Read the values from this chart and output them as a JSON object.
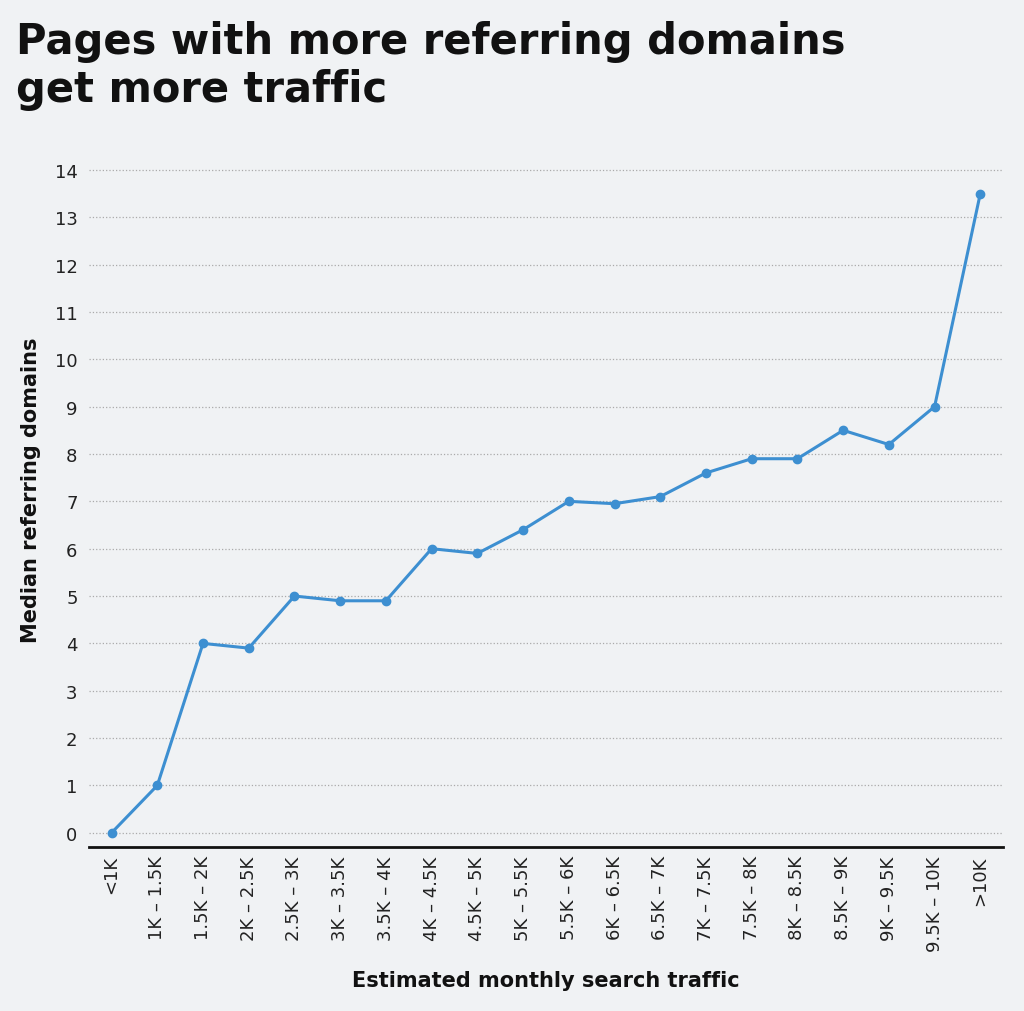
{
  "title": "Pages with more referring domains\nget more traffic",
  "xlabel": "Estimated monthly search traffic",
  "ylabel": "Median referring domains",
  "fig_background_color": "#f0f2f4",
  "plot_background_color": "#f0f2f4",
  "line_color": "#3d8fd1",
  "marker_color": "#3d8fd1",
  "categories": [
    "<1K",
    "1K – 1.5K",
    "1.5K – 2K",
    "2K – 2.5K",
    "2.5K – 3K",
    "3K – 3.5K",
    "3.5K – 4K",
    "4K – 4.5K",
    "4.5K – 5K",
    "5K – 5.5K",
    "5.5K – 6K",
    "6K – 6.5K",
    "6.5K – 7K",
    "7K – 7.5K",
    "7.5K – 8K",
    "8K – 8.5K",
    "8.5K – 9K",
    "9K – 9.5K",
    "9.5K – 10K",
    ">10K"
  ],
  "values": [
    0.0,
    1.0,
    4.0,
    3.9,
    5.0,
    4.9,
    4.9,
    6.0,
    5.9,
    6.4,
    7.0,
    6.95,
    7.1,
    7.6,
    7.9,
    7.9,
    8.5,
    8.2,
    9.0,
    13.5
  ],
  "ylim": [
    -0.3,
    14.8
  ],
  "yticks": [
    0,
    1,
    2,
    3,
    4,
    5,
    6,
    7,
    8,
    9,
    10,
    11,
    12,
    13,
    14
  ],
  "title_fontsize": 30,
  "axis_label_fontsize": 15,
  "tick_fontsize": 13,
  "grid_color": "#aaaaaa",
  "grid_style": ":",
  "line_width": 2.2,
  "marker_size": 6
}
